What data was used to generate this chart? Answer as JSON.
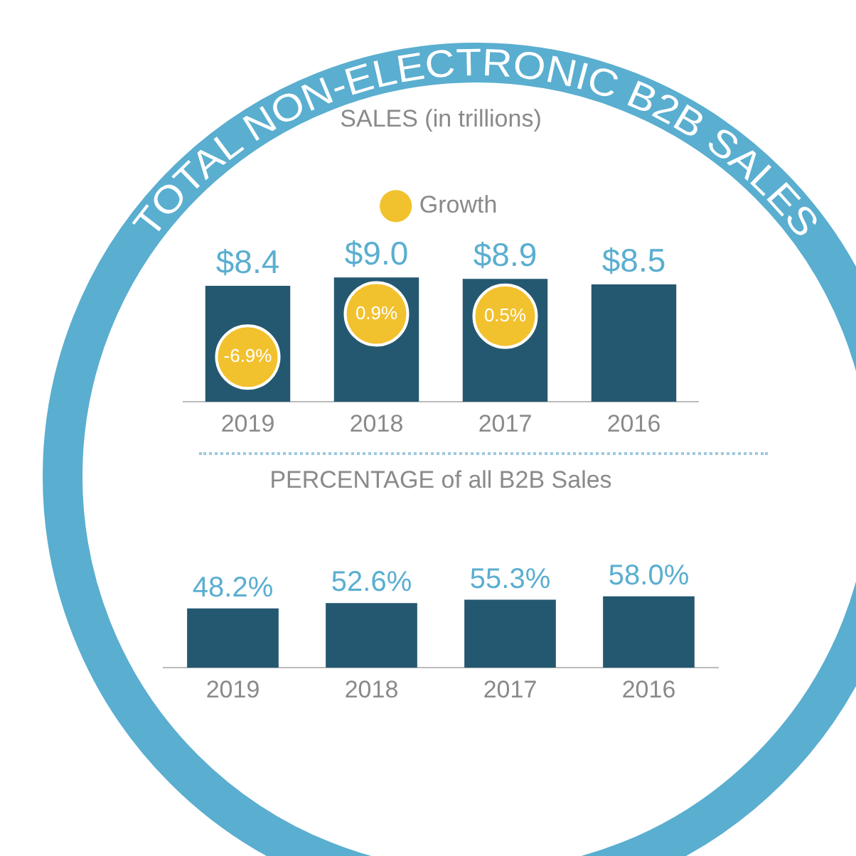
{
  "chart_data": [
    {
      "type": "bar",
      "title": "TOTAL NON-ELECTRONIC B2B SALES",
      "subtitle": "SALES (in trillions)",
      "categories": [
        "2019",
        "2018",
        "2017",
        "2016"
      ],
      "series": [
        {
          "color": "#245870",
          "values": [
            8.4,
            9.0,
            8.9,
            8.5
          ],
          "value_labels": [
            "$8.4",
            "$9.0",
            "$8.9",
            "$8.5"
          ]
        },
        {
          "name": "Growth",
          "type": "scatter",
          "axis": "y2",
          "color": "#f2c12e",
          "values": [
            -6.9,
            0.9,
            0.5,
            null
          ],
          "value_labels": [
            "-6.9%",
            "0.9%",
            "0.5%",
            null
          ]
        }
      ],
      "legend": "top",
      "grid": false,
      "tick_labels": "x"
    },
    {
      "type": "bar",
      "title": "PERCENTAGE of all B2B Sales",
      "categories": [
        "2019",
        "2018",
        "2017",
        "2016"
      ],
      "color": "#245870",
      "values": [
        48.2,
        52.6,
        55.3,
        58.0
      ],
      "value_labels": [
        "48.2%",
        "52.6%",
        "55.3%",
        "58.0%"
      ],
      "grid": false,
      "tick_labels": "x"
    }
  ]
}
